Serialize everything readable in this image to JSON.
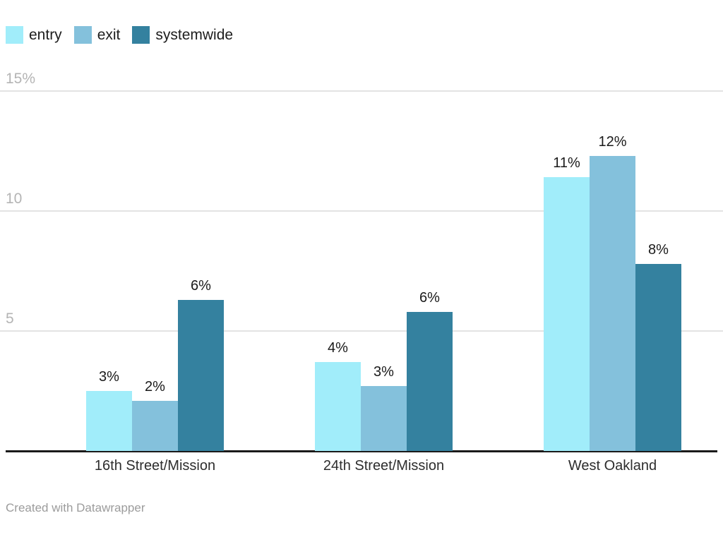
{
  "footer": {
    "credit": "Created with Datawrapper"
  },
  "colors": {
    "entry": "#a1edfa",
    "exit": "#84c1dc",
    "systemwide": "#34819f",
    "gridline": "#e3e3e3",
    "axis": "#1a1a1a"
  },
  "chart_data": {
    "type": "bar",
    "categories": [
      "16th Street/Mission",
      "24th Street/Mission",
      "West Oakland"
    ],
    "series": [
      {
        "name": "entry",
        "color": "#a1edfa",
        "values": [
          2.5,
          3.7,
          11.4
        ],
        "labels": [
          "3%",
          "4%",
          "11%"
        ]
      },
      {
        "name": "exit",
        "color": "#84c1dc",
        "values": [
          2.1,
          2.7,
          12.3
        ],
        "labels": [
          "2%",
          "3%",
          "12%"
        ]
      },
      {
        "name": "systemwide",
        "color": "#34819f",
        "values": [
          6.3,
          5.8,
          7.8
        ],
        "labels": [
          "6%",
          "6%",
          "8%"
        ]
      }
    ],
    "title": "",
    "xlabel": "",
    "ylabel": "",
    "ylim": [
      0,
      15
    ],
    "yticks": [
      {
        "value": 5,
        "label": "5"
      },
      {
        "value": 10,
        "label": "10"
      },
      {
        "value": 15,
        "label": "15%"
      }
    ],
    "grid": true,
    "legend_position": "top-left",
    "value_labels_shown": true
  }
}
